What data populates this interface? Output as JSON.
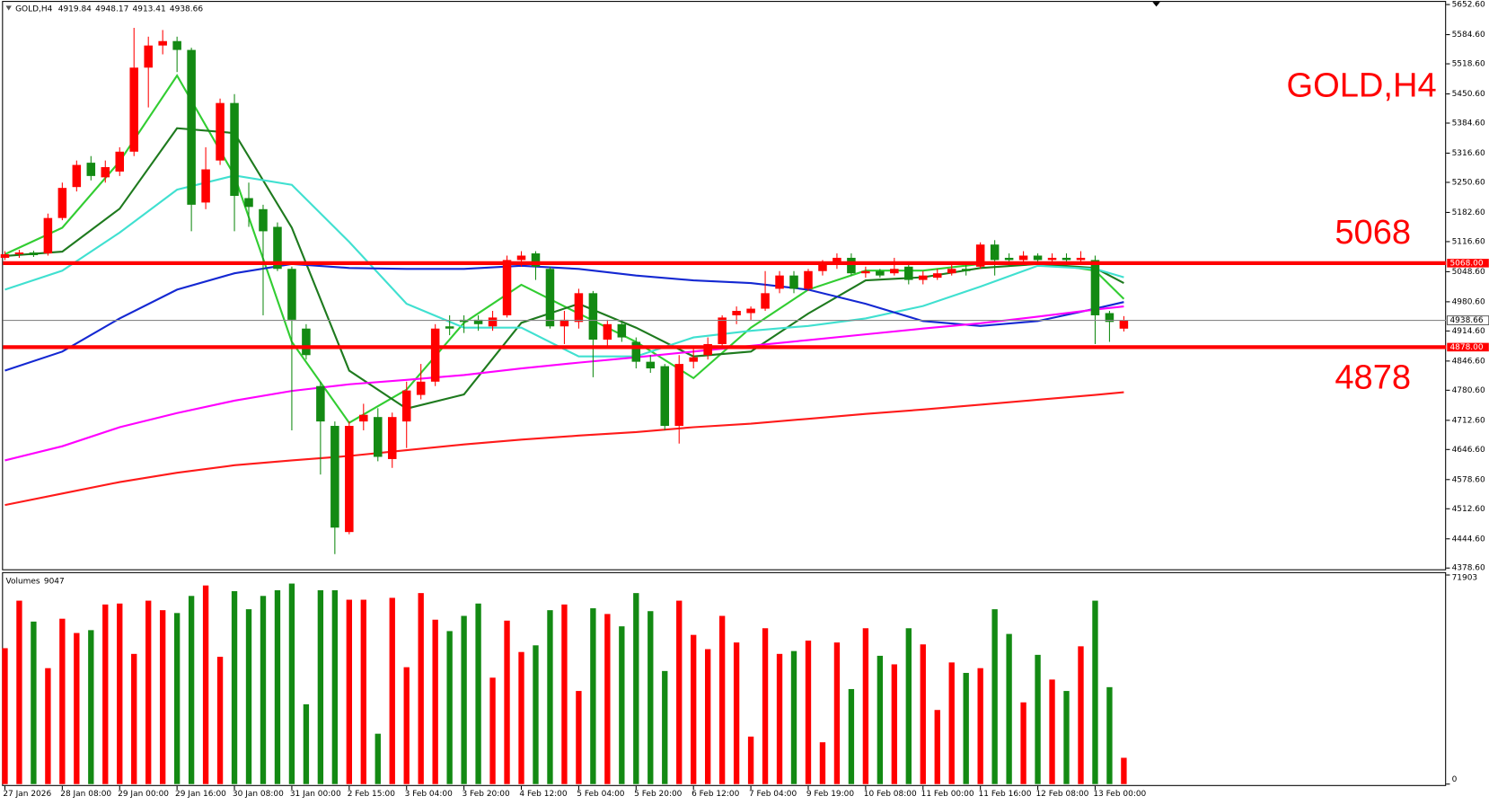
{
  "chart_data": [
    {
      "type": "candlestick",
      "title": "GOLD,H4",
      "last_ohlc": [
        4919.84,
        4948.17,
        4913.41,
        4938.66
      ],
      "categories": [
        "27 Jan 2026",
        null,
        null,
        null,
        "28 Jan 08:00",
        null,
        null,
        null,
        "29 Jan 00:00",
        null,
        null,
        null,
        "29 Jan 16:00",
        null,
        null,
        null,
        "30 Jan 08:00",
        null,
        null,
        null,
        "31 Jan 00:00",
        null,
        null,
        null,
        "2 Feb 15:00",
        null,
        null,
        null,
        "3 Feb 04:00",
        null,
        null,
        null,
        "3 Feb 20:00",
        null,
        null,
        null,
        "4 Feb 12:00",
        null,
        null,
        null,
        "5 Feb 04:00",
        null,
        null,
        null,
        "5 Feb 20:00",
        null,
        null,
        null,
        "6 Feb 12:00",
        null,
        null,
        null,
        "7 Feb 04:00",
        null,
        null,
        null,
        "9 Feb 19:00",
        null,
        null,
        null,
        "10 Feb 08:00",
        null,
        null,
        null,
        "11 Feb 00:00",
        null,
        null,
        null,
        "11 Feb 16:00",
        null,
        null,
        null,
        "12 Feb 08:00",
        null,
        null,
        null,
        "13 Feb 00:00",
        null,
        null
      ],
      "open": [
        5080,
        5088,
        5092,
        5090,
        5170,
        5240,
        5295,
        5262,
        5275,
        5320,
        5510,
        5560,
        5570,
        5550,
        5205,
        5300,
        5430,
        5215,
        5190,
        5150,
        5055,
        4920,
        4790,
        4700,
        4460,
        4710,
        4720,
        4625,
        4710,
        4770,
        4800,
        4925,
        4940,
        4940,
        4925,
        4950,
        5075,
        5090,
        5055,
        4925,
        4935,
        5000,
        4895,
        4930,
        4890,
        4845,
        4835,
        4700,
        4845,
        4860,
        4885,
        4950,
        4955,
        4965,
        5010,
        5040,
        5010,
        5050,
        5065,
        5080,
        5045,
        5050,
        5045,
        5060,
        5030,
        5035,
        5045,
        5055,
        5060,
        5110,
        5080,
        5075,
        5085,
        5075,
        5080,
        5075,
        5075,
        4955,
        4919.84
      ],
      "high": [
        5095,
        5098,
        5096,
        5180,
        5250,
        5300,
        5310,
        5300,
        5330,
        5600,
        5580,
        5595,
        5580,
        5555,
        5330,
        5440,
        5450,
        5250,
        5200,
        5160,
        5060,
        4930,
        4800,
        4710,
        4710,
        4750,
        4740,
        4730,
        4800,
        4840,
        4930,
        4950,
        4950,
        4950,
        4960,
        5085,
        5095,
        5095,
        5060,
        4960,
        5010,
        5005,
        4940,
        4940,
        4900,
        4860,
        4840,
        4860,
        4880,
        4900,
        4950,
        4970,
        4970,
        5050,
        5050,
        5050,
        5055,
        5075,
        5090,
        5090,
        5060,
        5055,
        5080,
        5070,
        5050,
        5055,
        5065,
        5070,
        5115,
        5120,
        5090,
        5095,
        5090,
        5090,
        5090,
        5095,
        5085,
        4960,
        4948.17
      ],
      "low": [
        5075,
        5080,
        5082,
        5085,
        5165,
        5230,
        5255,
        5250,
        5265,
        5310,
        5420,
        5540,
        5500,
        5140,
        5190,
        5290,
        5140,
        5150,
        4950,
        5050,
        4690,
        4850,
        4590,
        4410,
        4455,
        4690,
        4620,
        4605,
        4650,
        4760,
        4790,
        4905,
        4910,
        4915,
        4915,
        4945,
        5060,
        5030,
        4920,
        4885,
        4920,
        4810,
        4880,
        4890,
        4830,
        4820,
        4690,
        4660,
        4830,
        4850,
        4875,
        4930,
        4940,
        4960,
        5000,
        5000,
        5005,
        5040,
        5055,
        5040,
        5035,
        5035,
        5040,
        5020,
        5020,
        5030,
        5040,
        5040,
        5055,
        5040,
        5060,
        5065,
        5065,
        5065,
        5065,
        5070,
        4885,
        4890,
        4913.41
      ],
      "close": [
        5088,
        5092,
        5086,
        5170,
        5238,
        5290,
        5265,
        5285,
        5320,
        5510,
        5560,
        5570,
        5550,
        5200,
        5280,
        5430,
        5220,
        5195,
        5140,
        5055,
        4940,
        4860,
        4710,
        4470,
        4700,
        4725,
        4630,
        4720,
        4780,
        4800,
        4920,
        4920,
        4935,
        4930,
        4945,
        5075,
        5085,
        5060,
        4925,
        4940,
        5000,
        4895,
        4930,
        4900,
        4845,
        4830,
        4700,
        4840,
        4855,
        4885,
        4945,
        4960,
        4965,
        5000,
        5040,
        5010,
        5050,
        5070,
        5080,
        5045,
        5050,
        5040,
        5055,
        5030,
        5040,
        5045,
        5055,
        5050,
        5110,
        5075,
        5075,
        5085,
        5075,
        5080,
        5075,
        5080,
        4950,
        4935,
        4938.66
      ],
      "up_color": "#ff0000",
      "down_color": "#138a13",
      "ylim": [
        4373.6,
        5658.6
      ],
      "yticks": [
        {
          "value": 5652.6,
          "label": "5652.60"
        },
        {
          "value": 5584.6,
          "label": "5584.60"
        },
        {
          "value": 5518.6,
          "label": "5518.60"
        },
        {
          "value": 5450.6,
          "label": "5450.60"
        },
        {
          "value": 5384.6,
          "label": "5384.60"
        },
        {
          "value": 5316.6,
          "label": "5316.60"
        },
        {
          "value": 5250.6,
          "label": "5250.60"
        },
        {
          "value": 5182.6,
          "label": "5182.60"
        },
        {
          "value": 5116.6,
          "label": "5116.60"
        },
        {
          "value": 5048.6,
          "label": "5048.60"
        },
        {
          "value": 4980.6,
          "label": "4980.60"
        },
        {
          "value": 4914.6,
          "label": "4914.60"
        },
        {
          "value": 4846.6,
          "label": "4846.60"
        },
        {
          "value": 4780.6,
          "label": "4780.60"
        },
        {
          "value": 4712.6,
          "label": "4712.60"
        },
        {
          "value": 4646.6,
          "label": "4646.60"
        },
        {
          "value": 4578.6,
          "label": "4578.60"
        },
        {
          "value": 4512.6,
          "label": "4512.60"
        },
        {
          "value": 4444.6,
          "label": "4444.60"
        },
        {
          "value": 4378.6,
          "label": "4378.60"
        }
      ],
      "levels": [
        {
          "value": 5068,
          "label": "5068.00",
          "color": "#ff0000"
        },
        {
          "value": 4878,
          "label": "4878.00",
          "color": "#ff0000"
        }
      ],
      "indicators": [
        {
          "color": "#32cd32",
          "x": [
            0,
            4,
            8,
            12,
            16,
            20,
            24,
            28,
            32,
            36,
            40,
            44,
            48,
            52,
            56,
            60,
            64,
            68,
            72,
            76,
            78
          ],
          "values": [
            5088,
            5148,
            5298,
            5492,
            5266,
            4890,
            4707,
            4782,
            4933,
            5019,
            4954,
            4890,
            4808,
            4922,
            5008,
            5051,
            5051,
            5066,
            5070,
            5051,
            4987
          ]
        },
        {
          "color": "#1e7a1e",
          "x": [
            0,
            4,
            8,
            12,
            16,
            20,
            24,
            28,
            32,
            36,
            40,
            44,
            48,
            52,
            56,
            60,
            64,
            68,
            72,
            76,
            78
          ],
          "values": [
            5084,
            5094,
            5191,
            5373,
            5362,
            5148,
            4825,
            4739,
            4771,
            4933,
            4976,
            4922,
            4857,
            4868,
            4954,
            5029,
            5036,
            5057,
            5066,
            5057,
            5023
          ]
        },
        {
          "color": "#40e0d0",
          "x": [
            0,
            4,
            8,
            12,
            16,
            20,
            24,
            28,
            32,
            36,
            40,
            44,
            48,
            52,
            56,
            60,
            64,
            68,
            72,
            76,
            78
          ],
          "values": [
            5008,
            5051,
            5137,
            5234,
            5266,
            5245,
            5116,
            4976,
            4922,
            4922,
            4857,
            4857,
            4900,
            4915,
            4926,
            4943,
            4971,
            5015,
            5062,
            5055,
            5036
          ]
        },
        {
          "color": "#1428d2",
          "x": [
            0,
            4,
            8,
            12,
            16,
            20,
            24,
            28,
            32,
            36,
            40,
            44,
            48,
            52,
            56,
            60,
            64,
            68,
            72,
            76,
            78
          ],
          "values": [
            4825,
            4868,
            4943,
            5008,
            5045,
            5066,
            5057,
            5055,
            5055,
            5062,
            5055,
            5040,
            5029,
            5023,
            5008,
            4976,
            4937,
            4926,
            4937,
            4965,
            4980
          ]
        },
        {
          "color": "#ff00ff",
          "x": [
            0,
            4,
            8,
            12,
            16,
            20,
            24,
            28,
            32,
            36,
            40,
            44,
            48,
            52,
            56,
            60,
            64,
            68,
            72,
            76,
            78
          ],
          "values": [
            4622,
            4654,
            4697,
            4729,
            4757,
            4779,
            4794,
            4804,
            4815,
            4830,
            4843,
            4855,
            4868,
            4881,
            4894,
            4907,
            4920,
            4932,
            4947,
            4963,
            4970
          ]
        },
        {
          "color": "#ff1a1a",
          "x": [
            0,
            4,
            8,
            12,
            16,
            20,
            24,
            28,
            32,
            36,
            40,
            44,
            48,
            52,
            56,
            60,
            64,
            68,
            72,
            76,
            78
          ],
          "values": [
            4521,
            4547,
            4573,
            4594,
            4611,
            4622,
            4632,
            4645,
            4658,
            4669,
            4678,
            4686,
            4697,
            4705,
            4716,
            4727,
            4737,
            4748,
            4759,
            4770,
            4776
          ]
        }
      ]
    },
    {
      "type": "bar",
      "title": "Volumes",
      "values": [
        46735,
        63075,
        55885,
        39870,
        56865,
        51960,
        52940,
        61765,
        62090,
        44770,
        63075,
        59805,
        58825,
        64705,
        68300,
        43790,
        66340,
        60130,
        64705,
        66665,
        68955,
        27450,
        66665,
        66665,
        63400,
        63400,
        17320,
        64050,
        40195,
        65685,
        56535,
        52615,
        57845,
        62090,
        36600,
        56210,
        45425,
        47715,
        59805,
        61765,
        32025,
        60460,
        58495,
        54250,
        65685,
        59475,
        38890,
        63075,
        51310,
        46405,
        57845,
        48695,
        16340,
        53595,
        44770,
        45750,
        49345,
        14380,
        48695,
        32680,
        53595,
        44120,
        41175,
        53595,
        48040,
        25490,
        41830,
        38235,
        39870,
        60130,
        51635,
        28105,
        44445,
        35950,
        32025,
        47385,
        63075,
        33335,
        9047
      ],
      "ylim": [
        0,
        71903
      ],
      "yticks": [
        0,
        71903
      ]
    }
  ]
}
